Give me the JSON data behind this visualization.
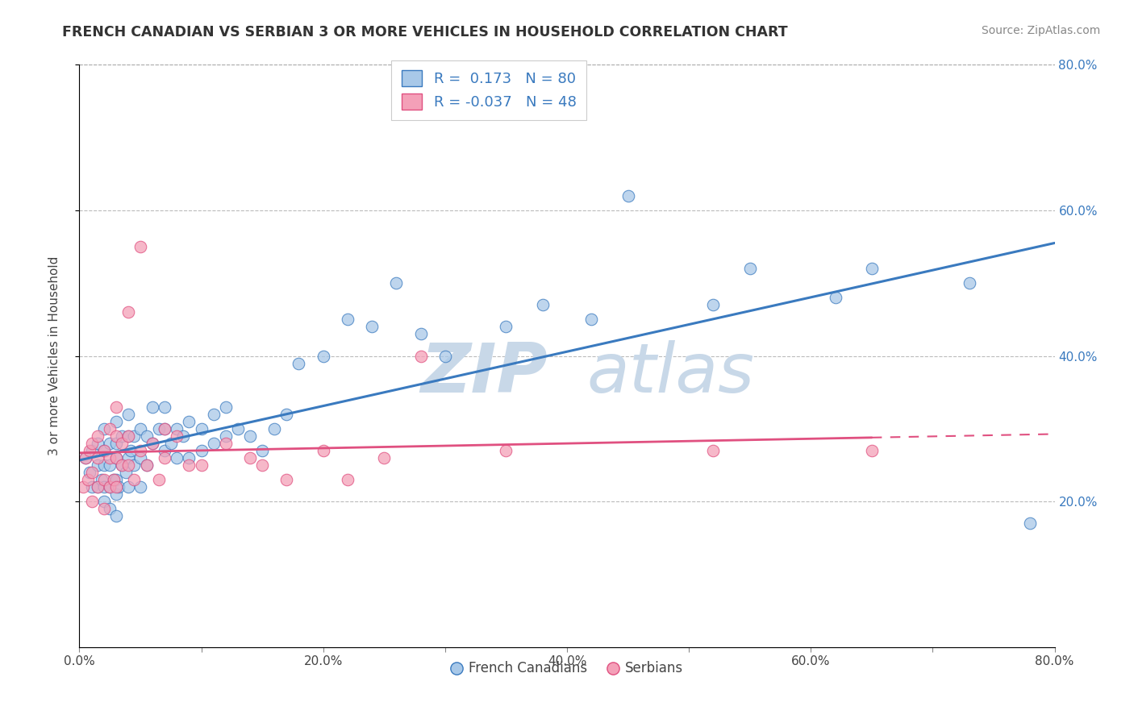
{
  "title": "FRENCH CANADIAN VS SERBIAN 3 OR MORE VEHICLES IN HOUSEHOLD CORRELATION CHART",
  "source": "Source: ZipAtlas.com",
  "ylabel": "3 or more Vehicles in Household",
  "xlim": [
    0.0,
    0.8
  ],
  "ylim": [
    0.0,
    0.8
  ],
  "xtick_labels": [
    "0.0%",
    "",
    "20.0%",
    "",
    "40.0%",
    "",
    "60.0%",
    "",
    "80.0%"
  ],
  "xtick_vals": [
    0.0,
    0.1,
    0.2,
    0.3,
    0.4,
    0.5,
    0.6,
    0.7,
    0.8
  ],
  "ytick_right_labels": [
    "20.0%",
    "40.0%",
    "60.0%",
    "80.0%"
  ],
  "ytick_vals": [
    0.2,
    0.4,
    0.6,
    0.8
  ],
  "legend_labels": [
    "French Canadians",
    "Serbians"
  ],
  "r_french": 0.173,
  "n_french": 80,
  "r_serbian": -0.037,
  "n_serbian": 48,
  "blue_color": "#a8c8e8",
  "pink_color": "#f4a0b8",
  "blue_line_color": "#3a7abf",
  "pink_line_color": "#e05080",
  "watermark_color": "#c8d8e8",
  "french_x": [
    0.005,
    0.008,
    0.01,
    0.01,
    0.015,
    0.015,
    0.015,
    0.018,
    0.02,
    0.02,
    0.02,
    0.02,
    0.02,
    0.025,
    0.025,
    0.025,
    0.025,
    0.028,
    0.03,
    0.03,
    0.03,
    0.03,
    0.03,
    0.03,
    0.032,
    0.035,
    0.035,
    0.038,
    0.04,
    0.04,
    0.04,
    0.04,
    0.042,
    0.045,
    0.045,
    0.05,
    0.05,
    0.05,
    0.055,
    0.055,
    0.06,
    0.06,
    0.065,
    0.07,
    0.07,
    0.07,
    0.075,
    0.08,
    0.08,
    0.085,
    0.09,
    0.09,
    0.1,
    0.1,
    0.11,
    0.11,
    0.12,
    0.12,
    0.13,
    0.14,
    0.15,
    0.16,
    0.17,
    0.18,
    0.2,
    0.22,
    0.24,
    0.26,
    0.28,
    0.3,
    0.35,
    0.38,
    0.42,
    0.45,
    0.52,
    0.55,
    0.62,
    0.65,
    0.73,
    0.78
  ],
  "french_y": [
    0.26,
    0.24,
    0.22,
    0.27,
    0.22,
    0.25,
    0.28,
    0.23,
    0.2,
    0.22,
    0.25,
    0.27,
    0.3,
    0.19,
    0.22,
    0.25,
    0.28,
    0.23,
    0.18,
    0.21,
    0.23,
    0.26,
    0.28,
    0.31,
    0.22,
    0.25,
    0.29,
    0.24,
    0.22,
    0.26,
    0.29,
    0.32,
    0.27,
    0.25,
    0.29,
    0.22,
    0.26,
    0.3,
    0.25,
    0.29,
    0.28,
    0.33,
    0.3,
    0.27,
    0.3,
    0.33,
    0.28,
    0.26,
    0.3,
    0.29,
    0.26,
    0.31,
    0.27,
    0.3,
    0.28,
    0.32,
    0.29,
    0.33,
    0.3,
    0.29,
    0.27,
    0.3,
    0.32,
    0.39,
    0.4,
    0.45,
    0.44,
    0.5,
    0.43,
    0.4,
    0.44,
    0.47,
    0.45,
    0.62,
    0.47,
    0.52,
    0.48,
    0.52,
    0.5,
    0.17
  ],
  "serbian_x": [
    0.003,
    0.005,
    0.007,
    0.008,
    0.01,
    0.01,
    0.01,
    0.015,
    0.015,
    0.015,
    0.02,
    0.02,
    0.02,
    0.025,
    0.025,
    0.025,
    0.028,
    0.03,
    0.03,
    0.03,
    0.03,
    0.035,
    0.035,
    0.04,
    0.04,
    0.04,
    0.045,
    0.05,
    0.05,
    0.055,
    0.06,
    0.065,
    0.07,
    0.07,
    0.08,
    0.09,
    0.1,
    0.12,
    0.14,
    0.15,
    0.17,
    0.2,
    0.22,
    0.25,
    0.28,
    0.35,
    0.52,
    0.65
  ],
  "serbian_y": [
    0.22,
    0.26,
    0.23,
    0.27,
    0.2,
    0.24,
    0.28,
    0.22,
    0.26,
    0.29,
    0.19,
    0.23,
    0.27,
    0.22,
    0.26,
    0.3,
    0.23,
    0.22,
    0.26,
    0.29,
    0.33,
    0.25,
    0.28,
    0.25,
    0.29,
    0.46,
    0.23,
    0.27,
    0.55,
    0.25,
    0.28,
    0.23,
    0.26,
    0.3,
    0.29,
    0.25,
    0.25,
    0.28,
    0.26,
    0.25,
    0.23,
    0.27,
    0.23,
    0.26,
    0.4,
    0.27,
    0.27,
    0.27
  ]
}
